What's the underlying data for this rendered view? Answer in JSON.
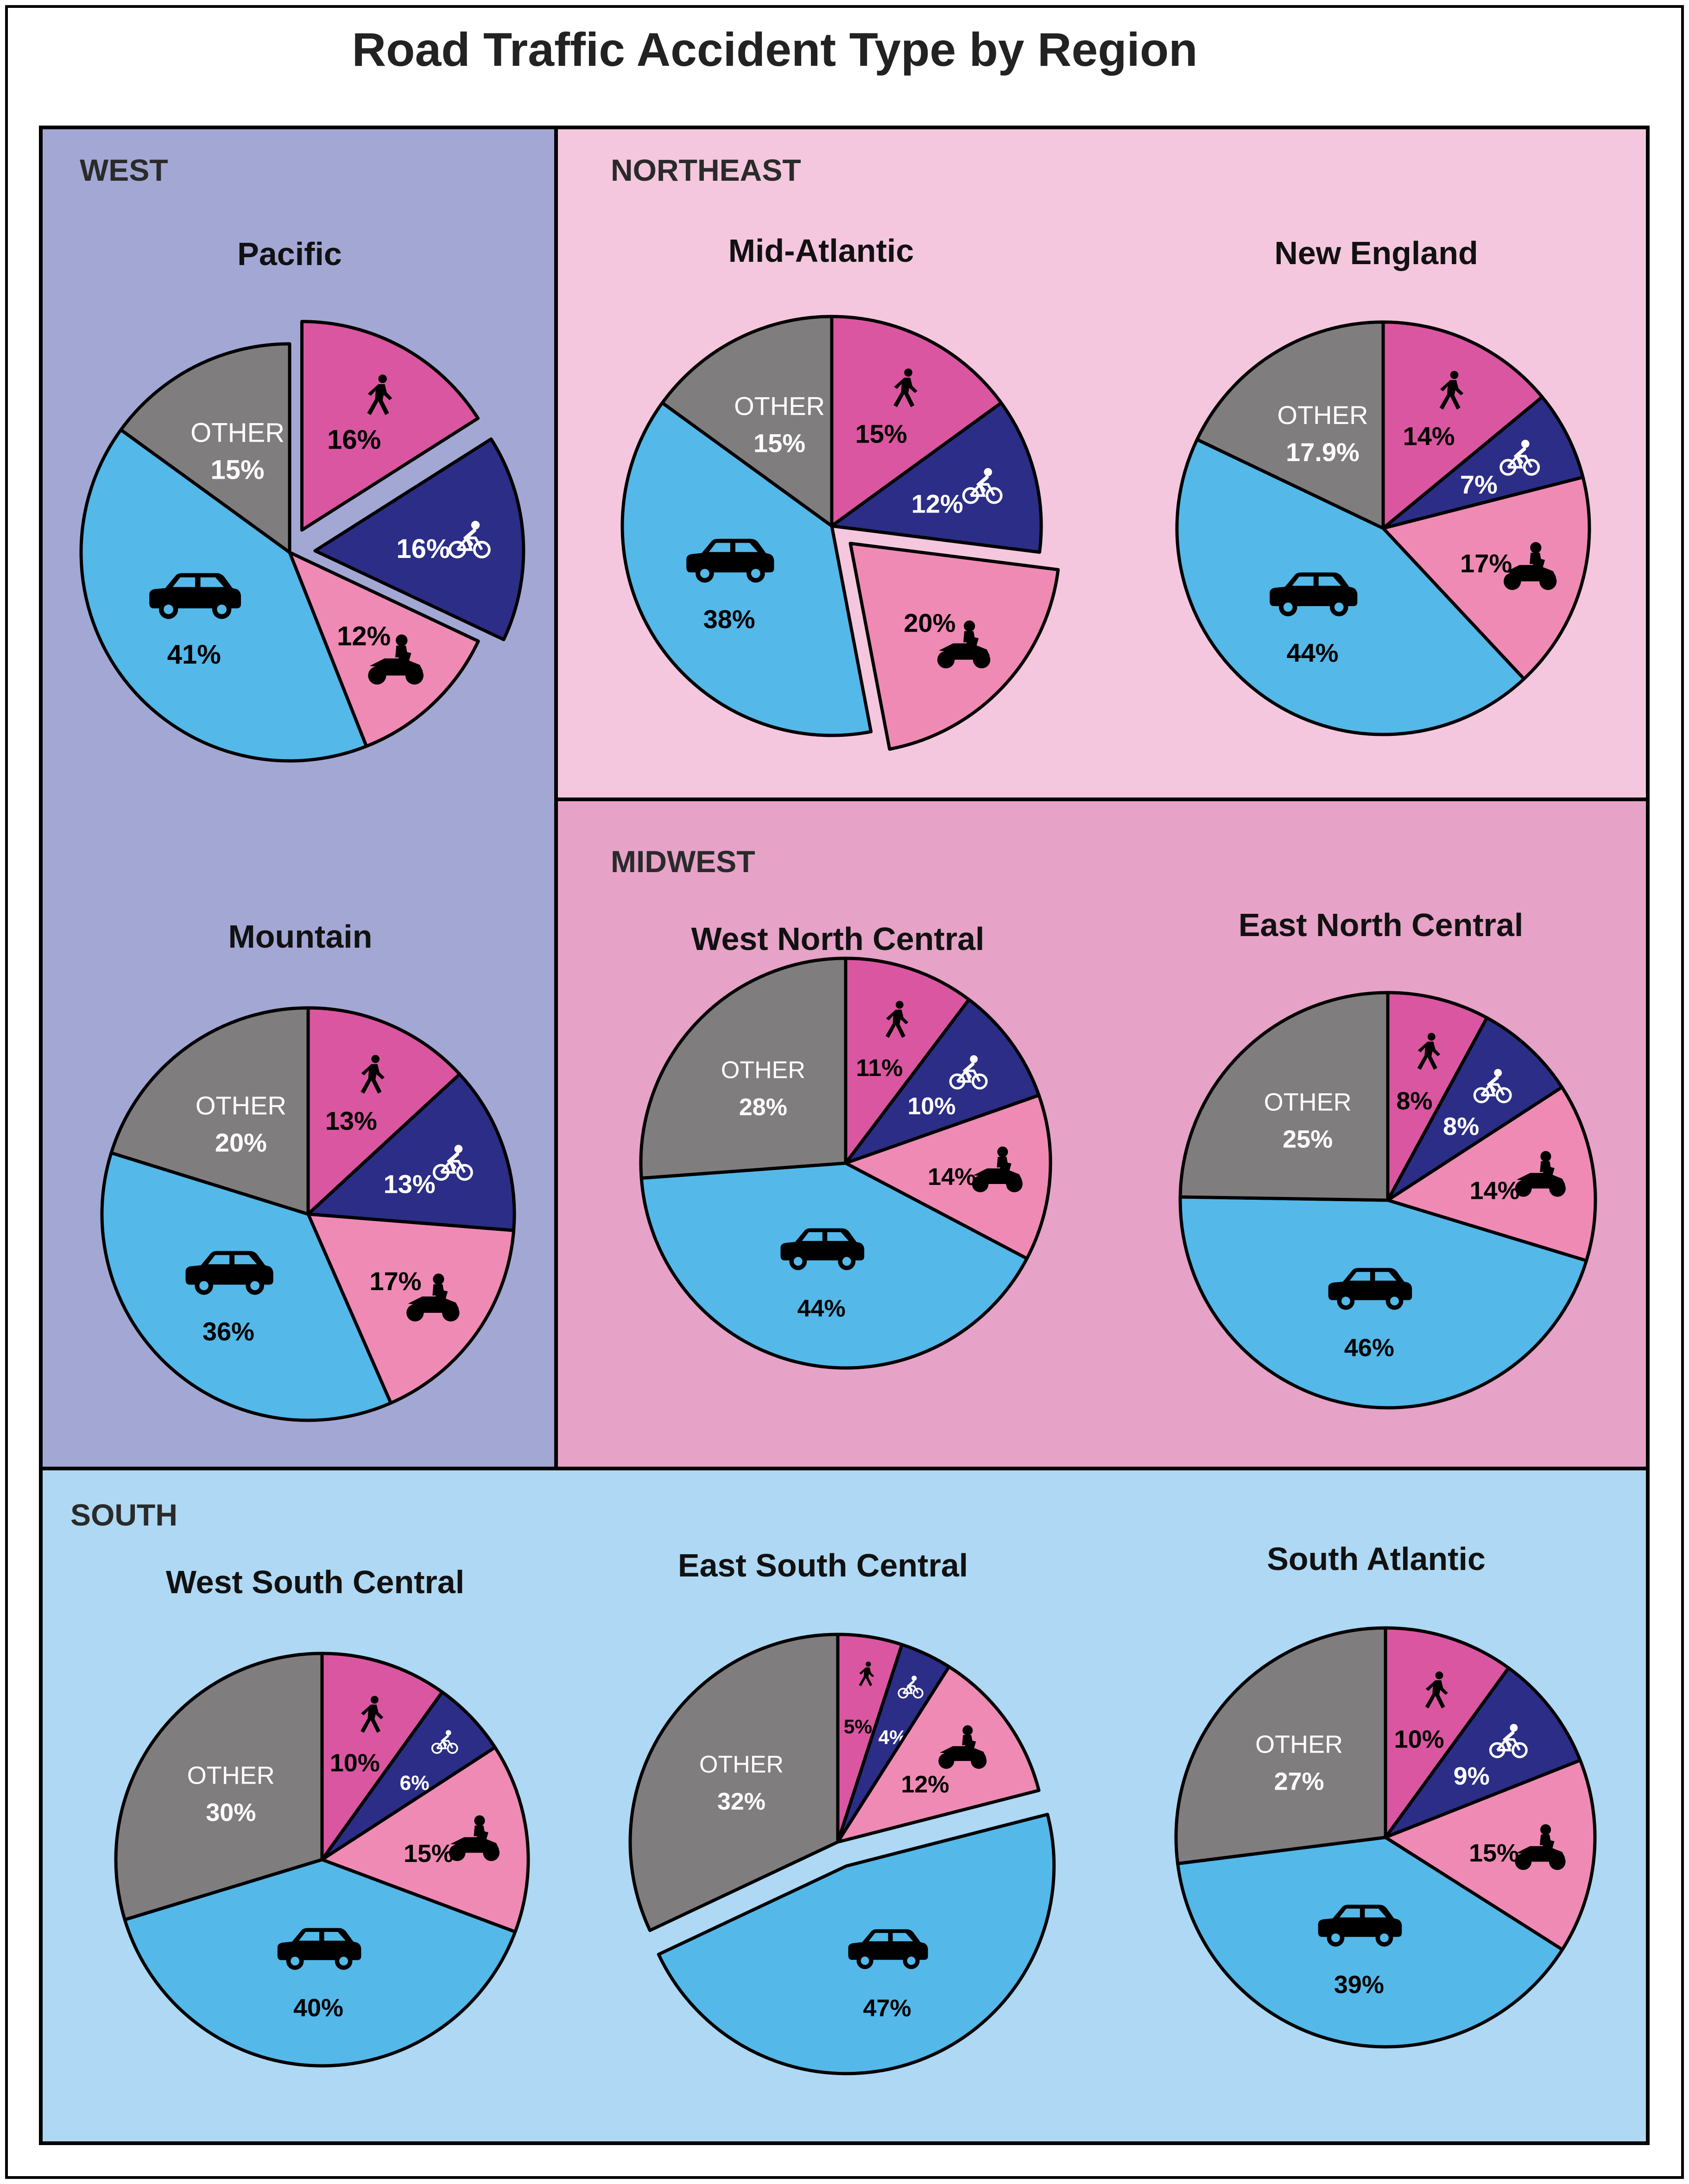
{
  "title": "Road Traffic Accident Type by Region",
  "colors": {
    "pedestrian": "#db56a1",
    "bicycle": "#2b2d86",
    "motorcycle": "#ef8ab5",
    "car": "#54b8e9",
    "other": "#807d7f",
    "west_bg": "#a3a7d4",
    "northeast_bg": "#f4c7de",
    "midwest_bg": "#e6a2c7",
    "south_bg": "#aed8f3"
  },
  "category_labels": {
    "other": "OTHER"
  },
  "icons": {
    "pedestrian": "pedestrian-icon",
    "bicycle": "bicycle-icon",
    "motorcycle": "motorcycle-icon",
    "car": "car-icon"
  },
  "regions": [
    {
      "id": "west",
      "label": "WEST"
    },
    {
      "id": "northeast",
      "label": "NORTHEAST"
    },
    {
      "id": "midwest",
      "label": "MIDWEST"
    },
    {
      "id": "south",
      "label": "SOUTH"
    }
  ],
  "chart_data": [
    {
      "type": "pie",
      "region": "WEST",
      "title": "Pacific",
      "categories": [
        "Pedestrian",
        "Bicycle",
        "Motorcycle",
        "Car",
        "Other"
      ],
      "values": [
        16,
        16,
        12,
        41,
        15
      ],
      "labels": [
        "16%",
        "16%",
        "12%",
        "41%",
        "15%"
      ],
      "exploded": [
        "Pedestrian",
        "Bicycle"
      ]
    },
    {
      "type": "pie",
      "region": "WEST",
      "title": "Mountain",
      "categories": [
        "Pedestrian",
        "Bicycle",
        "Motorcycle",
        "Car",
        "Other"
      ],
      "values": [
        13,
        13,
        17,
        36,
        20
      ],
      "labels": [
        "13%",
        "13%",
        "17%",
        "36%",
        "20%"
      ],
      "exploded": []
    },
    {
      "type": "pie",
      "region": "NORTHEAST",
      "title": "Mid-Atlantic",
      "categories": [
        "Pedestrian",
        "Bicycle",
        "Motorcycle",
        "Car",
        "Other"
      ],
      "values": [
        15,
        12,
        20,
        38,
        15
      ],
      "labels": [
        "15%",
        "12%",
        "20%",
        "38%",
        "15%"
      ],
      "exploded": [
        "Motorcycle"
      ]
    },
    {
      "type": "pie",
      "region": "NORTHEAST",
      "title": "New England",
      "categories": [
        "Pedestrian",
        "Bicycle",
        "Motorcycle",
        "Car",
        "Other"
      ],
      "values": [
        14,
        7,
        17,
        44,
        17.9
      ],
      "labels": [
        "14%",
        "7%",
        "17%",
        "44%",
        "17.9%"
      ],
      "exploded": []
    },
    {
      "type": "pie",
      "region": "MIDWEST",
      "title": "West North Central",
      "categories": [
        "Pedestrian",
        "Bicycle",
        "Motorcycle",
        "Car",
        "Other"
      ],
      "values": [
        11,
        10,
        14,
        44,
        28
      ],
      "labels": [
        "11%",
        "10%",
        "14%",
        "44%",
        "28%"
      ],
      "exploded": []
    },
    {
      "type": "pie",
      "region": "MIDWEST",
      "title": "East North Central",
      "categories": [
        "Pedestrian",
        "Bicycle",
        "Motorcycle",
        "Car",
        "Other"
      ],
      "values": [
        8,
        8,
        14,
        46,
        25
      ],
      "labels": [
        "8%",
        "8%",
        "14%",
        "46%",
        "25%"
      ],
      "exploded": []
    },
    {
      "type": "pie",
      "region": "SOUTH",
      "title": "West South Central",
      "categories": [
        "Pedestrian",
        "Bicycle",
        "Motorcycle",
        "Car",
        "Other"
      ],
      "values": [
        10,
        6,
        15,
        40,
        30
      ],
      "labels": [
        "10%",
        "6%",
        "15%",
        "40%",
        "30%"
      ],
      "exploded": []
    },
    {
      "type": "pie",
      "region": "SOUTH",
      "title": "East South Central",
      "categories": [
        "Pedestrian",
        "Bicycle",
        "Motorcycle",
        "Car",
        "Other"
      ],
      "values": [
        5,
        4,
        12,
        47,
        32
      ],
      "labels": [
        "5%",
        "4%",
        "12%",
        "47%",
        "32%"
      ],
      "exploded": [
        "Car"
      ]
    },
    {
      "type": "pie",
      "region": "SOUTH",
      "title": "South Atlantic",
      "categories": [
        "Pedestrian",
        "Bicycle",
        "Motorcycle",
        "Car",
        "Other"
      ],
      "values": [
        10,
        9,
        15,
        39,
        27
      ],
      "labels": [
        "10%",
        "9%",
        "15%",
        "39%",
        "27%"
      ],
      "exploded": []
    }
  ]
}
